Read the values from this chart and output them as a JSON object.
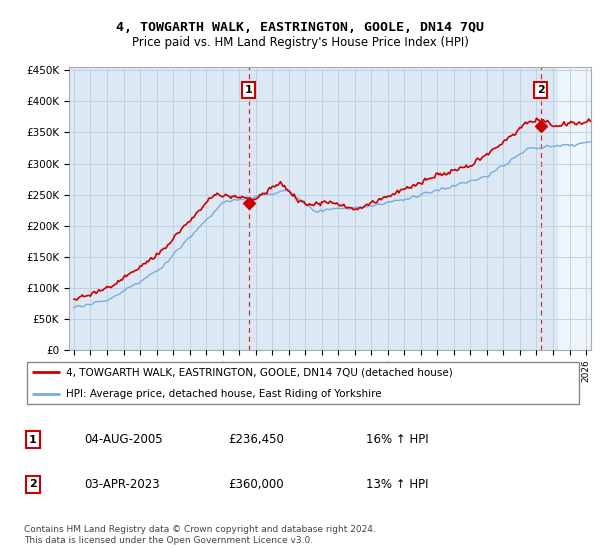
{
  "title": "4, TOWGARTH WALK, EASTRINGTON, GOOLE, DN14 7QU",
  "subtitle": "Price paid vs. HM Land Registry's House Price Index (HPI)",
  "ylabel_ticks": [
    "£0",
    "£50K",
    "£100K",
    "£150K",
    "£200K",
    "£250K",
    "£300K",
    "£350K",
    "£400K",
    "£450K"
  ],
  "ytick_values": [
    0,
    50000,
    100000,
    150000,
    200000,
    250000,
    300000,
    350000,
    400000,
    450000
  ],
  "ylim": [
    0,
    455000
  ],
  "xlim_start": 1994.7,
  "xlim_end": 2026.3,
  "marker1_x": 2005.58,
  "marker1_y": 236450,
  "marker2_x": 2023.25,
  "marker2_y": 360000,
  "red_line_color": "#cc0000",
  "blue_line_color": "#7aabdb",
  "annotation1_label": "1",
  "annotation2_label": "2",
  "legend_label1": "4, TOWGARTH WALK, EASTRINGTON, GOOLE, DN14 7QU (detached house)",
  "legend_label2": "HPI: Average price, detached house, East Riding of Yorkshire",
  "table_row1": [
    "1",
    "04-AUG-2005",
    "£236,450",
    "16% ↑ HPI"
  ],
  "table_row2": [
    "2",
    "03-APR-2023",
    "£360,000",
    "13% ↑ HPI"
  ],
  "footnote": "Contains HM Land Registry data © Crown copyright and database right 2024.\nThis data is licensed under the Open Government Licence v3.0.",
  "background_color": "#ffffff",
  "plot_bg_color": "#dce9f5",
  "grid_color": "#b8cfe0"
}
